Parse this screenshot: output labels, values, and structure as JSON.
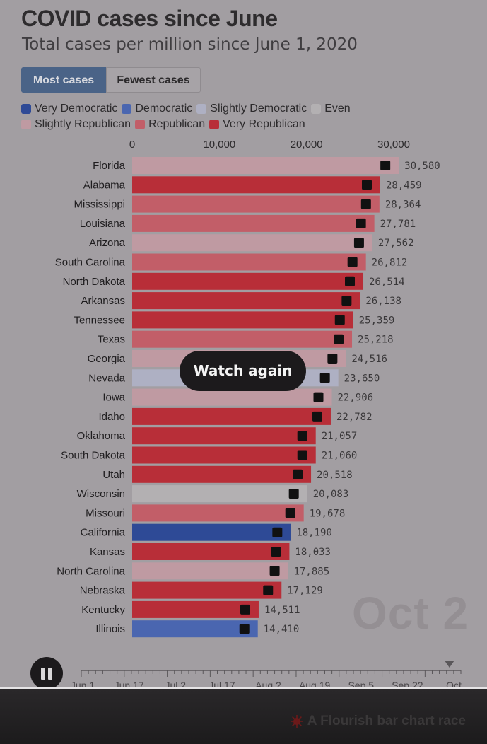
{
  "header": {
    "title": "COVID cases since June",
    "subtitle": "Total cases per million since June 1, 2020"
  },
  "toggle": {
    "most": "Most cases",
    "fewest": "Fewest cases",
    "selected": "most"
  },
  "legend": [
    {
      "label": "Very Democratic",
      "color": "#2e4a96"
    },
    {
      "label": "Democratic",
      "color": "#4a66b0"
    },
    {
      "label": "Slightly Democratic",
      "color": "#aeb0c3"
    },
    {
      "label": "Even",
      "color": "#b3b0b2"
    },
    {
      "label": "Slightly Republican",
      "color": "#bf9aa2"
    },
    {
      "label": "Republican",
      "color": "#c25e68"
    },
    {
      "label": "Very Republican",
      "color": "#b82e38"
    }
  ],
  "chart_data": {
    "type": "bar",
    "orientation": "horizontal",
    "x_ticks": [
      "0",
      "10,000",
      "20,000",
      "30,000"
    ],
    "xlim": [
      0,
      30000
    ],
    "current_date": "Oct 2",
    "bars": [
      {
        "state": "Florida",
        "value": 30580,
        "label": "30,580",
        "lean": "Slightly Republican"
      },
      {
        "state": "Alabama",
        "value": 28459,
        "label": "28,459",
        "lean": "Very Republican"
      },
      {
        "state": "Mississippi",
        "value": 28364,
        "label": "28,364",
        "lean": "Republican"
      },
      {
        "state": "Louisiana",
        "value": 27781,
        "label": "27,781",
        "lean": "Republican"
      },
      {
        "state": "Arizona",
        "value": 27562,
        "label": "27,562",
        "lean": "Slightly Republican"
      },
      {
        "state": "South Carolina",
        "value": 26812,
        "label": "26,812",
        "lean": "Republican"
      },
      {
        "state": "North Dakota",
        "value": 26514,
        "label": "26,514",
        "lean": "Very Republican"
      },
      {
        "state": "Arkansas",
        "value": 26138,
        "label": "26,138",
        "lean": "Very Republican"
      },
      {
        "state": "Tennessee",
        "value": 25359,
        "label": "25,359",
        "lean": "Very Republican"
      },
      {
        "state": "Texas",
        "value": 25218,
        "label": "25,218",
        "lean": "Republican"
      },
      {
        "state": "Georgia",
        "value": 24516,
        "label": "24,516",
        "lean": "Slightly Republican"
      },
      {
        "state": "Nevada",
        "value": 23650,
        "label": "23,650",
        "lean": "Slightly Democratic"
      },
      {
        "state": "Iowa",
        "value": 22906,
        "label": "22,906",
        "lean": "Slightly Republican"
      },
      {
        "state": "Idaho",
        "value": 22782,
        "label": "22,782",
        "lean": "Very Republican"
      },
      {
        "state": "Oklahoma",
        "value": 21057,
        "label": "21,057",
        "lean": "Very Republican"
      },
      {
        "state": "South Dakota",
        "value": 21060,
        "label": "21,060",
        "lean": "Very Republican"
      },
      {
        "state": "Utah",
        "value": 20518,
        "label": "20,518",
        "lean": "Very Republican"
      },
      {
        "state": "Wisconsin",
        "value": 20083,
        "label": "20,083",
        "lean": "Even"
      },
      {
        "state": "Missouri",
        "value": 19678,
        "label": "19,678",
        "lean": "Republican"
      },
      {
        "state": "California",
        "value": 18190,
        "label": "18,190",
        "lean": "Very Democratic"
      },
      {
        "state": "Kansas",
        "value": 18033,
        "label": "18,033",
        "lean": "Very Republican"
      },
      {
        "state": "North Carolina",
        "value": 17885,
        "label": "17,885",
        "lean": "Slightly Republican"
      },
      {
        "state": "Nebraska",
        "value": 17129,
        "label": "17,129",
        "lean": "Very Republican"
      },
      {
        "state": "Kentucky",
        "value": 14511,
        "label": "14,511",
        "lean": "Very Republican"
      },
      {
        "state": "Illinois",
        "value": 14410,
        "label": "14,410",
        "lean": "Democratic"
      }
    ]
  },
  "overlay": {
    "replay_label": "Watch again"
  },
  "timeline": {
    "labels": [
      "Jun 1",
      "Jun 17",
      "Jul 2",
      "Jul 17",
      "Aug 2",
      "Aug 19",
      "Sep 5",
      "Sep 22",
      "Oct"
    ],
    "progress": 0.97
  },
  "footer": {
    "credit": "A Flourish bar chart race"
  }
}
